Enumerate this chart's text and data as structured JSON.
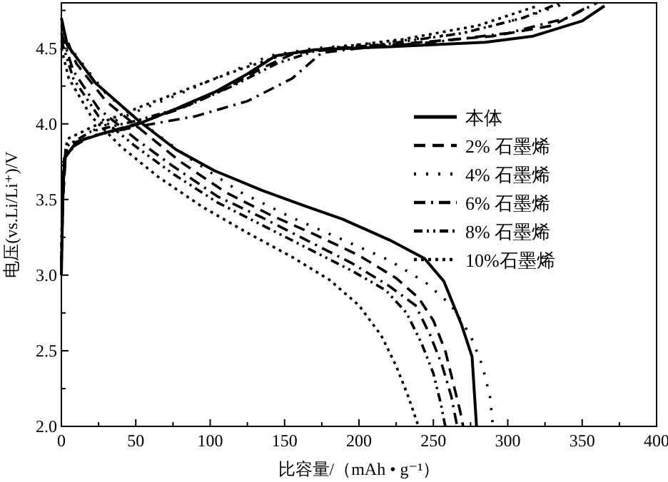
{
  "chart_data": {
    "type": "line",
    "xlabel": "比容量/（mAh • g⁻¹）",
    "ylabel": "电压(vs.Li/Li⁺)/V",
    "xlim": [
      0,
      400
    ],
    "xticks": [
      0,
      {
        "value": 25,
        "label": null
      },
      50,
      {
        "value": 75,
        "label": null
      },
      100,
      {
        "value": 125,
        "label": null
      },
      150,
      {
        "value": 175,
        "label": null
      },
      200,
      {
        "value": 225,
        "label": null
      },
      250,
      {
        "value": 275,
        "label": null
      },
      300,
      {
        "value": 325,
        "label": null
      },
      350,
      {
        "value": 375,
        "label": null
      },
      400
    ],
    "ylim": [
      2.0,
      4.8
    ],
    "yticks": [
      {
        "value": 2.0,
        "label": "2.0"
      },
      {
        "value": 2.25,
        "label": null
      },
      {
        "value": 2.5,
        "label": "2.5"
      },
      {
        "value": 2.75,
        "label": null
      },
      {
        "value": 3.0,
        "label": "3.0"
      },
      {
        "value": 3.25,
        "label": null
      },
      {
        "value": 3.5,
        "label": "3.5"
      },
      {
        "value": 3.75,
        "label": null
      },
      {
        "value": 4.0,
        "label": "4.0"
      },
      {
        "value": 4.25,
        "label": null
      },
      {
        "value": 4.5,
        "label": "4.5"
      },
      {
        "value": 4.75,
        "label": null
      }
    ],
    "grid": false,
    "legend": "right",
    "series": [
      {
        "name": "本体",
        "color": "#000000",
        "line_style": "solid",
        "x": [
          0,
          1,
          2,
          10,
          29,
          52,
          77,
          103,
          125,
          144,
          170,
          221,
          285,
          317,
          350,
          365
        ],
        "values": [
          3.0,
          3.5,
          3.77,
          3.88,
          3.94,
          4.0,
          4.1,
          4.21,
          4.33,
          4.45,
          4.49,
          4.51,
          4.54,
          4.58,
          4.68,
          4.78
        ]
      },
      {
        "name": "2% 石墨烯",
        "color": "#000000",
        "line_style": "dashed",
        "x": [
          0,
          1,
          3,
          15,
          50,
          80,
          110,
          135,
          155,
          180,
          230,
          290,
          330,
          355
        ],
        "values": [
          3.05,
          3.5,
          3.8,
          3.9,
          4.0,
          4.1,
          4.23,
          4.37,
          4.46,
          4.5,
          4.53,
          4.58,
          4.65,
          4.78
        ]
      },
      {
        "name": "4% 石墨烯",
        "color": "#000000",
        "line_style": "sparse_dotted",
        "x": [
          0,
          1,
          3,
          20,
          50,
          80,
          110,
          140,
          170,
          220,
          270,
          310,
          340
        ],
        "values": [
          3.1,
          3.6,
          3.85,
          3.95,
          4.08,
          4.2,
          4.33,
          4.45,
          4.5,
          4.54,
          4.6,
          4.7,
          4.8
        ]
      },
      {
        "name": "6% 石墨烯",
        "color": "#000000",
        "line_style": "dashdot",
        "x": [
          0,
          1,
          3,
          20,
          50,
          90,
          125,
          155,
          175,
          200,
          250,
          300,
          340,
          360
        ],
        "values": [
          3.05,
          3.5,
          3.82,
          3.92,
          3.98,
          4.05,
          4.15,
          4.3,
          4.47,
          4.5,
          4.54,
          4.6,
          4.7,
          4.8
        ]
      },
      {
        "name": "8% 石墨烯",
        "color": "#000000",
        "line_style": "dashdotdot",
        "x": [
          0,
          1,
          3,
          20,
          50,
          85,
          115,
          145,
          170,
          220,
          270,
          310,
          335
        ],
        "values": [
          3.1,
          3.6,
          3.85,
          3.95,
          4.02,
          4.12,
          4.25,
          4.4,
          4.48,
          4.53,
          4.6,
          4.7,
          4.8
        ]
      },
      {
        "name": "10%石墨烯",
        "color": "#000000",
        "line_style": "dotted",
        "x": [
          0,
          1,
          4,
          25,
          55,
          90,
          120,
          150,
          180,
          230,
          280,
          320
        ],
        "values": [
          3.2,
          3.7,
          3.9,
          4.0,
          4.12,
          4.25,
          4.36,
          4.46,
          4.5,
          4.56,
          4.65,
          4.78
        ]
      },
      {
        "color": "#000000",
        "line_style": "solid",
        "x": [
          0,
          4,
          23,
          52,
          77,
          103,
          135,
          163,
          189,
          221,
          244,
          257,
          269,
          276,
          279
        ],
        "values": [
          4.7,
          4.52,
          4.27,
          4.02,
          3.83,
          3.69,
          3.56,
          3.46,
          3.37,
          3.23,
          3.11,
          2.96,
          2.67,
          2.46,
          2.0
        ]
      },
      {
        "color": "#000000",
        "line_style": "dashed",
        "x": [
          0,
          10,
          30,
          55,
          80,
          110,
          140,
          170,
          200,
          225,
          240,
          250,
          258,
          263,
          268,
          270
        ],
        "values": [
          4.65,
          4.4,
          4.15,
          3.95,
          3.75,
          3.55,
          3.4,
          3.27,
          3.13,
          2.98,
          2.85,
          2.7,
          2.5,
          2.3,
          2.1,
          2.0
        ]
      },
      {
        "color": "#000000",
        "line_style": "sparse_dotted",
        "x": [
          0,
          10,
          30,
          55,
          85,
          120,
          155,
          190,
          220,
          245,
          262,
          275,
          283,
          288,
          290
        ],
        "values": [
          4.6,
          4.45,
          4.2,
          4.0,
          3.78,
          3.55,
          3.38,
          3.23,
          3.1,
          2.95,
          2.8,
          2.6,
          2.4,
          2.2,
          2.0
        ]
      },
      {
        "color": "#000000",
        "line_style": "dashdot",
        "x": [
          0,
          8,
          25,
          50,
          75,
          105,
          135,
          165,
          195,
          220,
          238,
          248,
          256,
          262,
          266
        ],
        "values": [
          4.6,
          4.35,
          4.1,
          3.9,
          3.72,
          3.52,
          3.38,
          3.23,
          3.08,
          2.93,
          2.8,
          2.6,
          2.4,
          2.2,
          2.0
        ]
      },
      {
        "color": "#000000",
        "line_style": "dashdotdot",
        "x": [
          0,
          8,
          25,
          50,
          75,
          105,
          135,
          165,
          195,
          218,
          232,
          242,
          250,
          255,
          258
        ],
        "values": [
          4.55,
          4.3,
          4.05,
          3.85,
          3.67,
          3.48,
          3.33,
          3.18,
          3.03,
          2.9,
          2.75,
          2.55,
          2.35,
          2.15,
          2.0
        ]
      },
      {
        "color": "#000000",
        "line_style": "dotted",
        "x": [
          0,
          5,
          20,
          40,
          65,
          95,
          125,
          155,
          180,
          200,
          215,
          225,
          233,
          240
        ],
        "values": [
          4.5,
          4.3,
          4.05,
          3.85,
          3.65,
          3.45,
          3.28,
          3.12,
          2.97,
          2.8,
          2.6,
          2.4,
          2.2,
          2.0
        ]
      }
    ]
  }
}
